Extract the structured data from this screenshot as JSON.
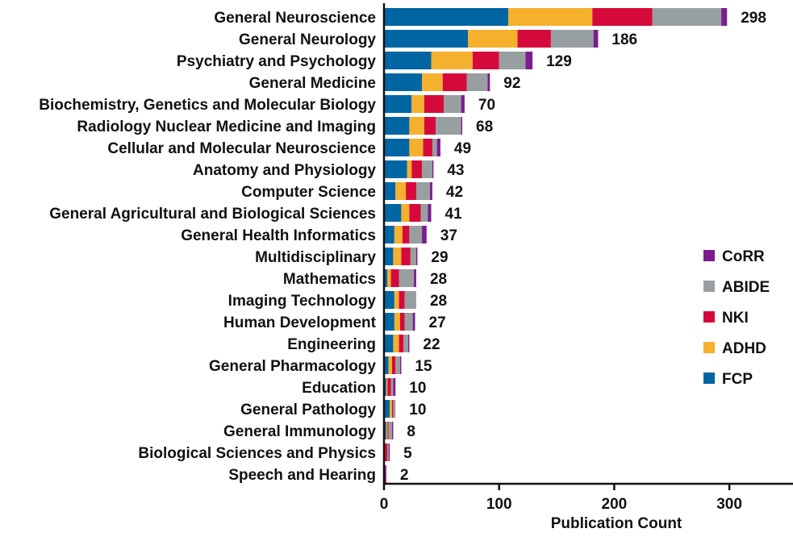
{
  "chart_data": {
    "type": "bar",
    "orientation": "horizontal",
    "stacked": true,
    "xlabel": "Publication Count",
    "xlim": [
      0,
      350
    ],
    "xticks": [
      0,
      100,
      200,
      300
    ],
    "grid": false,
    "legend_position": "right",
    "categories": [
      "General Neuroscience",
      "General Neurology",
      "Psychiatry and Psychology",
      "General Medicine",
      "Biochemistry, Genetics and Molecular Biology",
      "Radiology Nuclear Medicine and Imaging",
      "Cellular and Molecular Neuroscience",
      "Anatomy and Physiology",
      "Computer Science",
      "General Agricultural and Biological Sciences",
      "General Health Informatics",
      "Multidisciplinary",
      "Mathematics",
      "Imaging Technology",
      "Human Development",
      "Engineering",
      "General Pharmacology",
      "Education",
      "General Pathology",
      "General Immunology",
      "Biological Sciences and Physics",
      "Speech and Hearing"
    ],
    "totals": [
      "298",
      "186",
      "129",
      "92",
      "70",
      "68",
      "49",
      "43",
      "42",
      "41",
      "37",
      "29",
      "28",
      "28",
      "27",
      "22",
      "15",
      "10",
      "10",
      "8",
      "5",
      "2"
    ],
    "series": [
      {
        "name": "FCP",
        "color": "#0065a3",
        "values": [
          108,
          73,
          41,
          33,
          24,
          22,
          22,
          20,
          10,
          15,
          9,
          8,
          3,
          9,
          9,
          8,
          4,
          2,
          5,
          2,
          0,
          0
        ]
      },
      {
        "name": "ADHD",
        "color": "#f5b02e",
        "values": [
          73,
          43,
          36,
          18,
          11,
          13,
          12,
          4,
          9,
          7,
          7,
          7,
          3,
          4,
          5,
          5,
          3,
          1,
          2,
          1,
          0,
          0
        ]
      },
      {
        "name": "NKI",
        "color": "#d6093c",
        "values": [
          52,
          29,
          23,
          21,
          17,
          10,
          8,
          9,
          9,
          10,
          6,
          8,
          7,
          5,
          4,
          4,
          3,
          3,
          1,
          1,
          3,
          1
        ]
      },
      {
        "name": "ABIDE",
        "color": "#989fa0",
        "values": [
          60,
          37,
          23,
          18,
          15,
          22,
          4,
          9,
          12,
          6,
          11,
          5,
          13,
          10,
          7,
          4,
          4,
          2,
          2,
          3,
          1,
          0
        ]
      },
      {
        "name": "CoRR",
        "color": "#7b1d8e",
        "values": [
          5,
          4,
          6,
          2,
          3,
          1,
          3,
          1,
          2,
          3,
          4,
          1,
          2,
          0,
          2,
          1,
          1,
          2,
          0,
          1,
          1,
          1
        ]
      }
    ],
    "legend_order": [
      "CoRR",
      "ABIDE",
      "NKI",
      "ADHD",
      "FCP"
    ]
  }
}
